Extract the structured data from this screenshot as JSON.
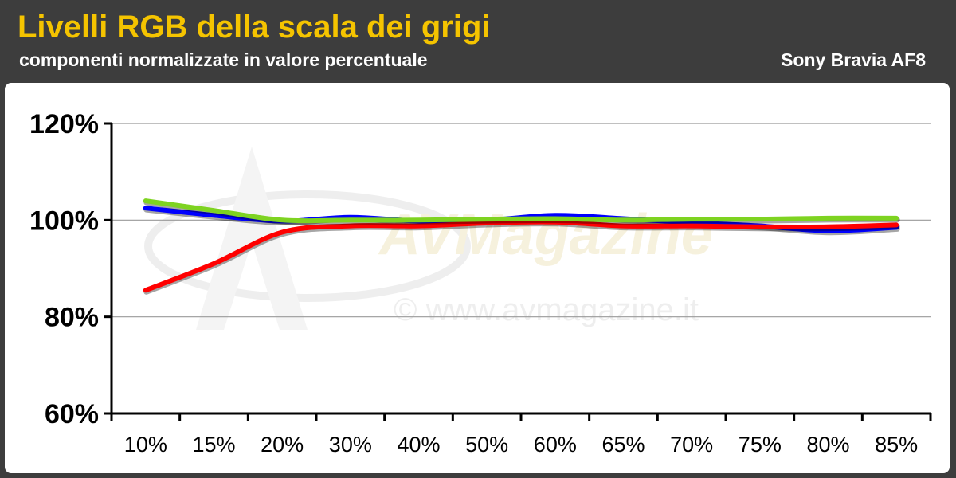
{
  "header": {
    "title": "Livelli RGB della scala dei grigi",
    "subtitle": "componenti normalizzate in valore percentuale",
    "device": "Sony Bravia AF8"
  },
  "watermark": {
    "logo_text": "AVMagazine",
    "url_text": "© www.avmagazine.it"
  },
  "colors": {
    "header_bg": "#3d3d3d",
    "title": "#f5c400",
    "red_series": "#ff0000",
    "green_series": "#7ed321",
    "blue_series": "#0000ff"
  },
  "chart_data": {
    "type": "line",
    "title": "Livelli RGB della scala dei grigi",
    "subtitle": "componenti normalizzate in valore percentuale",
    "xlabel": "",
    "ylabel": "",
    "categories": [
      "10%",
      "15%",
      "20%",
      "30%",
      "40%",
      "50%",
      "60%",
      "65%",
      "70%",
      "75%",
      "80%",
      "85%"
    ],
    "y_ticks": [
      "60%",
      "80%",
      "100%",
      "120%"
    ],
    "ylim": [
      60,
      120
    ],
    "grid": true,
    "legend": "none",
    "series": [
      {
        "color": "#0000ff",
        "values": [
          102.5,
          101.0,
          99.8,
          100.6,
          99.8,
          100.0,
          101.0,
          100.3,
          99.5,
          98.8,
          97.8,
          98.5
        ]
      },
      {
        "color": "#ff0000",
        "values": [
          85.5,
          91.0,
          97.5,
          98.8,
          98.8,
          99.4,
          99.6,
          98.8,
          98.8,
          98.6,
          98.6,
          99.0
        ]
      },
      {
        "color": "#7ed321",
        "values": [
          104.0,
          102.0,
          100.0,
          100.0,
          100.0,
          100.2,
          100.3,
          100.0,
          100.2,
          100.2,
          100.4,
          100.4
        ]
      }
    ]
  }
}
